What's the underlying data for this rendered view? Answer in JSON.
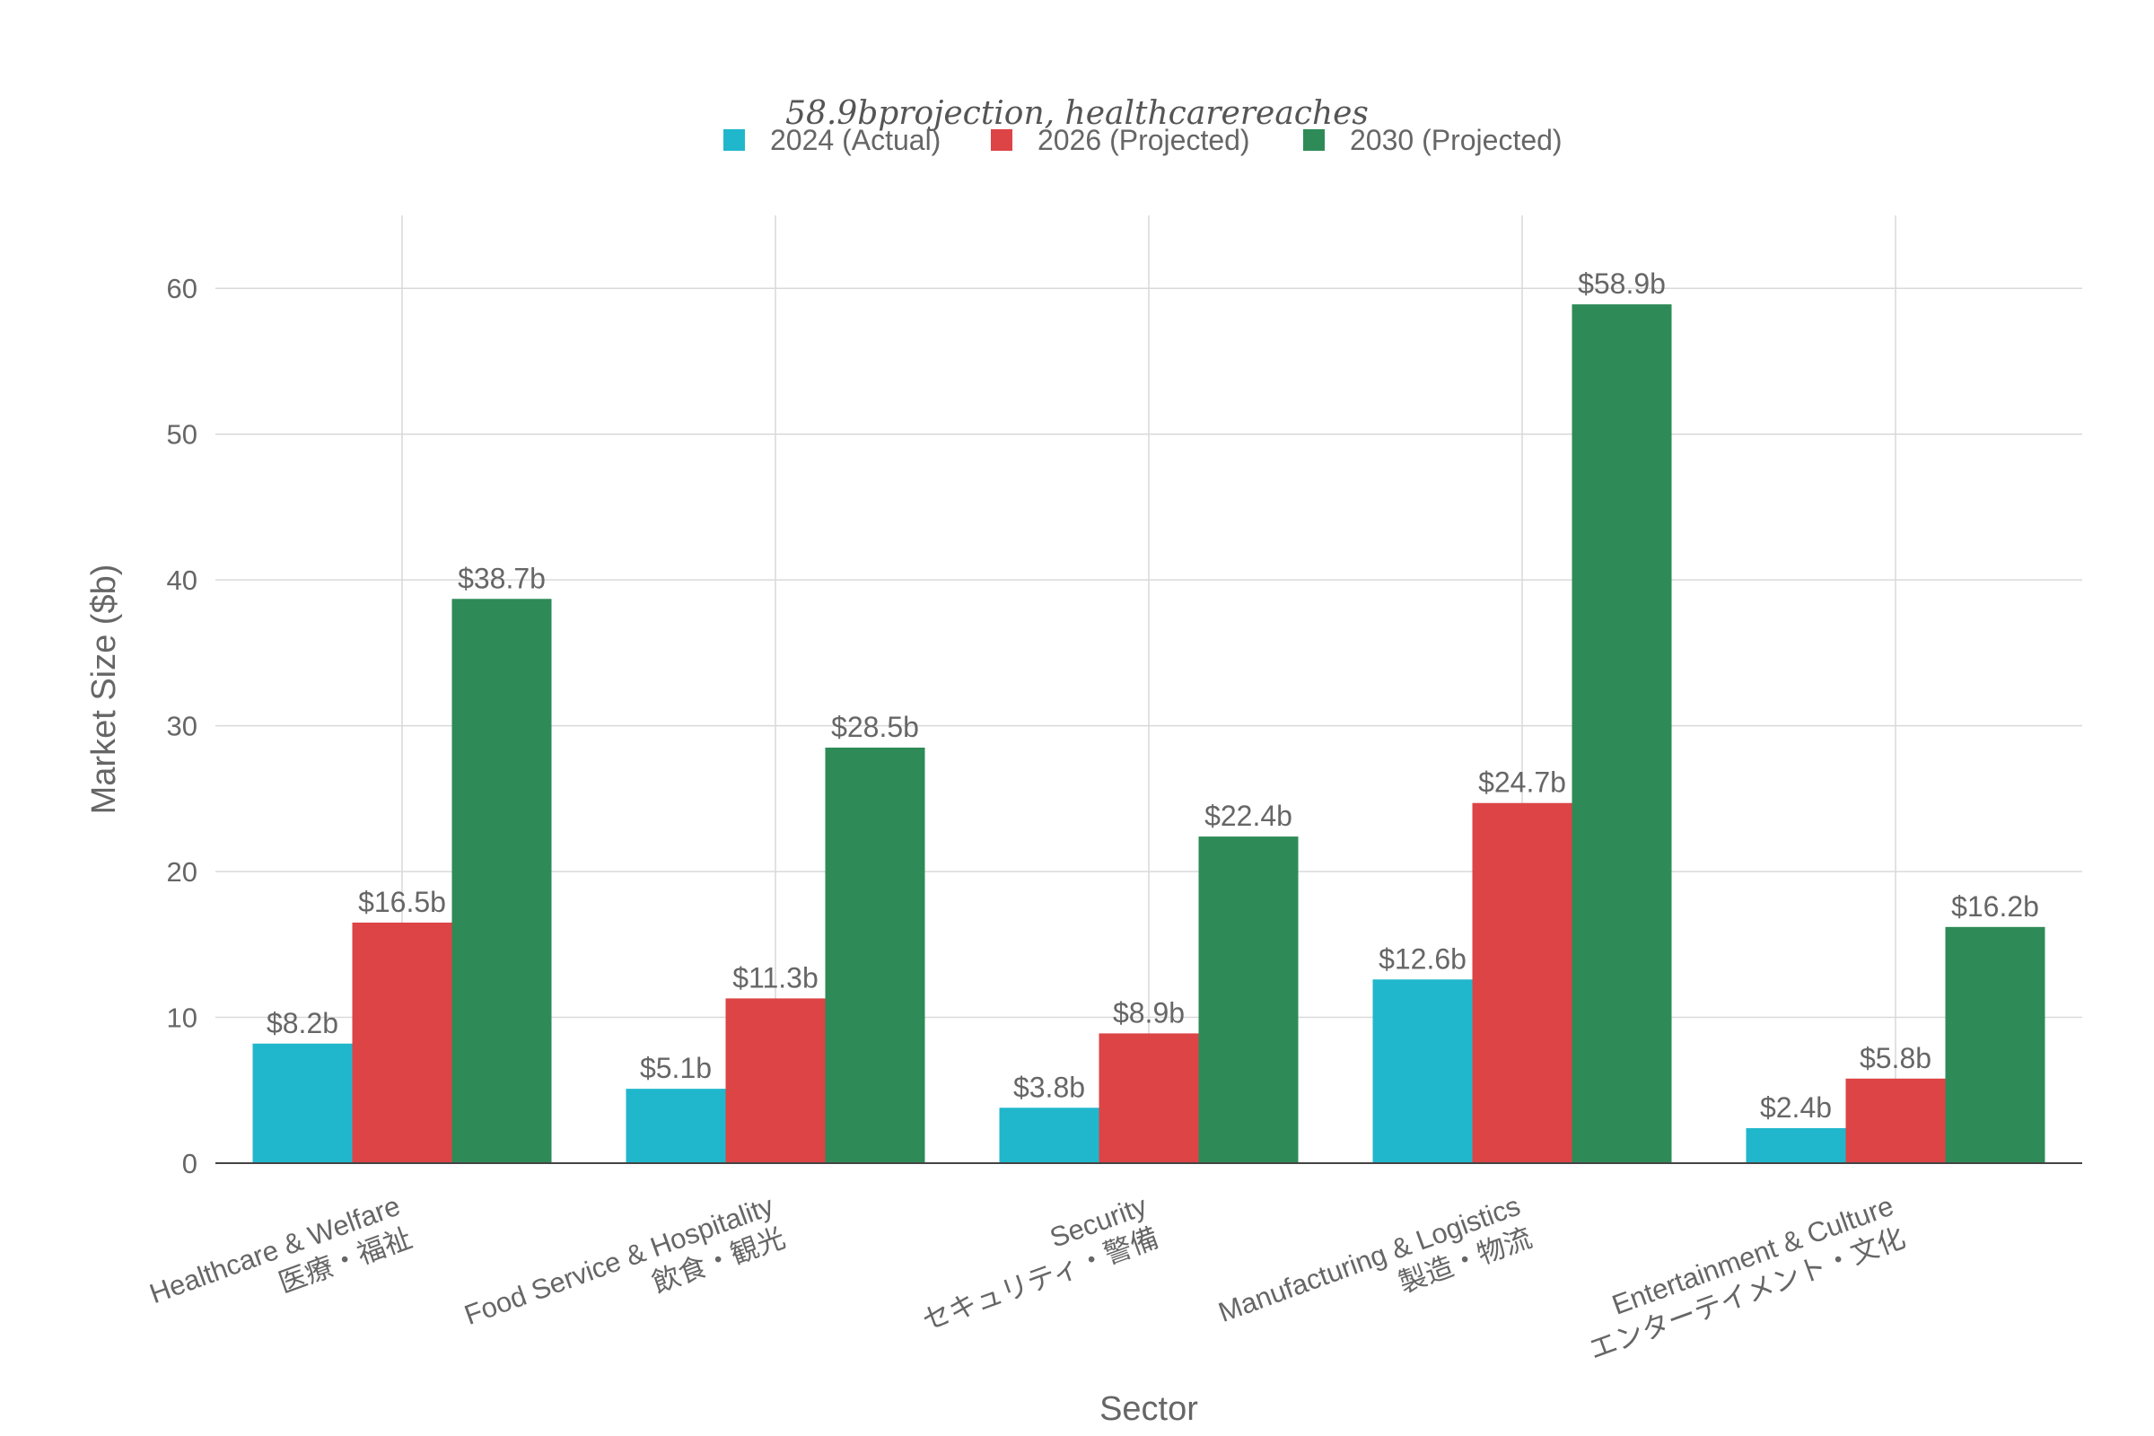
{
  "chart_data": {
    "type": "bar",
    "title": "58.9bprojection, healthcarereaches",
    "xlabel": "Sector",
    "ylabel": "Market Size ($b)",
    "ylim": [
      0,
      65
    ],
    "yticks": [
      0,
      10,
      20,
      30,
      40,
      50,
      60
    ],
    "grid": true,
    "legend_position": "top-center",
    "categories": [
      {
        "en": "Healthcare & Welfare",
        "ja": "医療・福祉"
      },
      {
        "en": "Food Service & Hospitality",
        "ja": "飲食・観光"
      },
      {
        "en": "Security",
        "ja": "セキュリティ・警備"
      },
      {
        "en": "Manufacturing & Logistics",
        "ja": "製造・物流"
      },
      {
        "en": "Entertainment & Culture",
        "ja": "エンターテイメント・文化"
      }
    ],
    "series": [
      {
        "name": "2024 (Actual)",
        "color": "#20b7cc",
        "values": [
          8.2,
          5.1,
          3.8,
          12.6,
          2.4
        ],
        "labels": [
          "$8.2b",
          "$5.1b",
          "$3.8b",
          "$12.6b",
          "$2.4b"
        ]
      },
      {
        "name": "2026 (Projected)",
        "color": "#dc4446",
        "values": [
          16.5,
          11.3,
          8.9,
          24.7,
          5.8
        ],
        "labels": [
          "$16.5b",
          "$11.3b",
          "$8.9b",
          "$24.7b",
          "$5.8b"
        ]
      },
      {
        "name": "2030 (Projected)",
        "color": "#2e8b57",
        "values": [
          38.7,
          28.5,
          22.4,
          58.9,
          16.2
        ],
        "labels": [
          "$38.7b",
          "$28.5b",
          "$22.4b",
          "$58.9b",
          "$16.2b"
        ]
      }
    ]
  }
}
